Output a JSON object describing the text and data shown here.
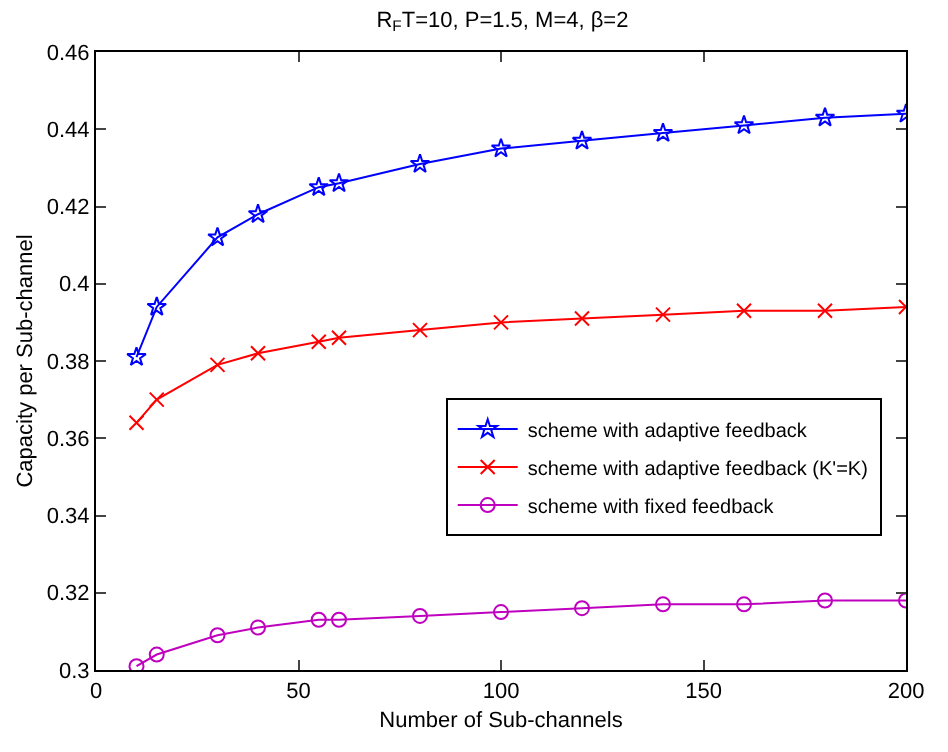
{
  "chart_data": {
    "type": "line",
    "title": "R$_{F}$T=10, P=1.5, M=4, β=2",
    "xlabel": "Number of Sub-channels",
    "ylabel": "Capacity per Sub-channel",
    "x": [
      10,
      15,
      30,
      40,
      55,
      60,
      80,
      100,
      120,
      140,
      160,
      180,
      200
    ],
    "series": [
      {
        "name": "scheme with adaptive feedback",
        "color": "#0000ff",
        "marker": "star",
        "values": [
          0.381,
          0.394,
          0.412,
          0.418,
          0.425,
          0.426,
          0.431,
          0.435,
          0.437,
          0.439,
          0.441,
          0.443,
          0.444
        ]
      },
      {
        "name": "scheme with adaptive feedback (K'=K)",
        "color": "#ff0000",
        "marker": "cross",
        "values": [
          0.364,
          0.37,
          0.379,
          0.382,
          0.385,
          0.386,
          0.388,
          0.39,
          0.391,
          0.392,
          0.393,
          0.393,
          0.394
        ]
      },
      {
        "name": "scheme with fixed feedback",
        "color": "#bf00bf",
        "marker": "circle",
        "values": [
          0.301,
          0.304,
          0.309,
          0.311,
          0.313,
          0.313,
          0.314,
          0.315,
          0.316,
          0.317,
          0.317,
          0.318,
          0.318
        ]
      }
    ],
    "xlim": [
      0,
      200
    ],
    "xticks": [
      0,
      50,
      100,
      150,
      200
    ],
    "ylim": [
      0.3,
      0.46
    ],
    "yticks": [
      0.3,
      0.32,
      0.34,
      0.36,
      0.38,
      0.4,
      0.42,
      0.44,
      0.46
    ],
    "grid": false,
    "legend": "right",
    "line_style": "solid"
  }
}
